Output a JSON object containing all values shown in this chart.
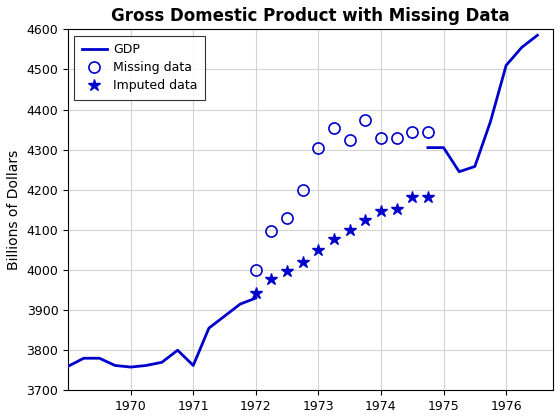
{
  "title": "Gross Domestic Product with Missing Data",
  "ylabel": "Billions of Dollars",
  "line_color": "#0000CC",
  "gdp_x1": [
    1969.0,
    1969.25,
    1969.5,
    1969.75,
    1970.0,
    1970.25,
    1970.5,
    1970.75,
    1971.0,
    1971.25,
    1971.5,
    1971.75,
    1972.0
  ],
  "gdp_y1": [
    3760,
    3780,
    3780,
    3762,
    3758,
    3762,
    3770,
    3800,
    3762,
    3855,
    3885,
    3915,
    3930
  ],
  "gdp_x2": [
    1974.75,
    1975.0,
    1975.25,
    1975.5,
    1975.75,
    1976.0,
    1976.25,
    1976.5
  ],
  "gdp_y2": [
    4305,
    4305,
    4245,
    4258,
    4370,
    4510,
    4555,
    4585
  ],
  "missing_x": [
    1972.0,
    1972.25,
    1972.5,
    1972.75,
    1973.0,
    1973.25,
    1973.5,
    1973.75,
    1974.0,
    1974.25,
    1974.5,
    1974.75
  ],
  "missing_y": [
    4000,
    4097,
    4130,
    4200,
    4305,
    4355,
    4325,
    4375,
    4330,
    4330,
    4345,
    4345
  ],
  "imputed_x": [
    1972.0,
    1972.25,
    1972.5,
    1972.75,
    1973.0,
    1973.25,
    1973.5,
    1973.75,
    1974.0,
    1974.25,
    1974.5,
    1974.75
  ],
  "imputed_y": [
    3943,
    3978,
    3998,
    4020,
    4050,
    4078,
    4100,
    4125,
    4148,
    4153,
    4183,
    4183
  ],
  "xlim": [
    1969.0,
    1976.75
  ],
  "ylim": [
    3700,
    4600
  ],
  "xticks": [
    1970,
    1971,
    1972,
    1973,
    1974,
    1975,
    1976
  ],
  "yticks": [
    3700,
    3800,
    3900,
    4000,
    4100,
    4200,
    4300,
    4400,
    4500,
    4600
  ]
}
